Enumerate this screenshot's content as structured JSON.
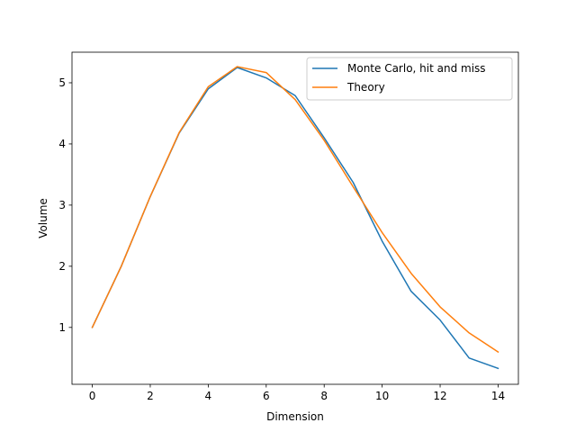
{
  "chart_data": {
    "type": "line",
    "title": "",
    "xlabel": "Dimension",
    "ylabel": "Volume",
    "xlim": [
      -0.7,
      14.7
    ],
    "ylim": [
      0.07,
      5.5
    ],
    "xticks": [
      0,
      2,
      4,
      6,
      8,
      10,
      12,
      14
    ],
    "yticks": [
      1,
      2,
      3,
      4,
      5
    ],
    "legend_position": "top-right",
    "grid": false,
    "x": [
      0,
      1,
      2,
      3,
      4,
      5,
      6,
      7,
      8,
      9,
      10,
      11,
      12,
      13,
      14
    ],
    "series": [
      {
        "name": "Monte Carlo, hit and miss",
        "color": "#1f77b4",
        "values": [
          1.0,
          2.0,
          3.14,
          4.18,
          4.9,
          5.25,
          5.08,
          4.79,
          4.1,
          3.37,
          2.41,
          1.59,
          1.12,
          0.5,
          0.33
        ]
      },
      {
        "name": "Theory",
        "color": "#ff7f0e",
        "values": [
          1.0,
          2.0,
          3.1416,
          4.1888,
          4.9348,
          5.2638,
          5.1677,
          4.7248,
          4.0587,
          3.2985,
          2.5502,
          1.8841,
          1.3353,
          0.9106,
          0.5993
        ]
      }
    ]
  }
}
